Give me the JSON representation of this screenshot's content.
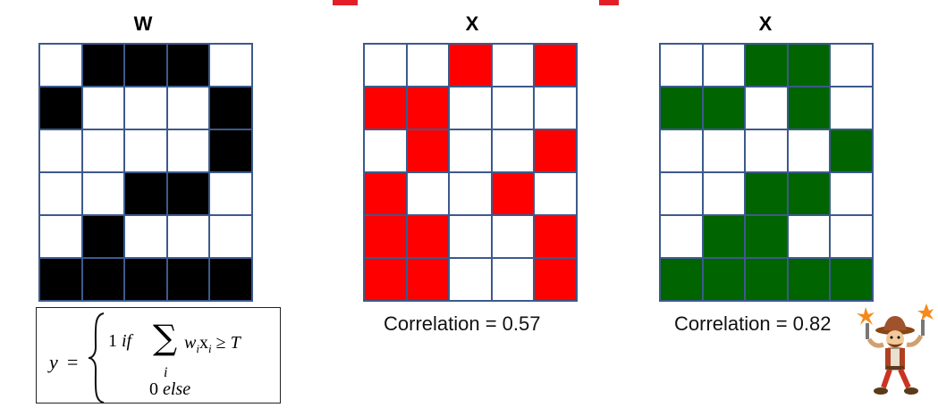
{
  "labels": {
    "w": "W",
    "x1": "X",
    "x2": "X"
  },
  "grids": {
    "w": {
      "color": "#000000",
      "cells": [
        [
          0,
          1,
          1,
          1,
          0
        ],
        [
          1,
          0,
          0,
          0,
          1
        ],
        [
          0,
          0,
          0,
          0,
          1
        ],
        [
          0,
          0,
          1,
          1,
          0
        ],
        [
          0,
          1,
          0,
          0,
          0
        ],
        [
          1,
          1,
          1,
          1,
          1
        ]
      ]
    },
    "x1": {
      "color": "#ff0000",
      "cells": [
        [
          0,
          0,
          1,
          0,
          1
        ],
        [
          1,
          1,
          0,
          0,
          0
        ],
        [
          0,
          1,
          0,
          0,
          1
        ],
        [
          1,
          0,
          0,
          1,
          0
        ],
        [
          1,
          1,
          0,
          0,
          1
        ],
        [
          1,
          1,
          0,
          0,
          1
        ]
      ]
    },
    "x2": {
      "color": "#006400",
      "cells": [
        [
          0,
          0,
          1,
          1,
          0
        ],
        [
          1,
          1,
          0,
          1,
          0
        ],
        [
          0,
          0,
          0,
          0,
          1
        ],
        [
          0,
          0,
          1,
          1,
          0
        ],
        [
          0,
          1,
          1,
          0,
          0
        ],
        [
          1,
          1,
          1,
          1,
          1
        ]
      ]
    }
  },
  "correlations": {
    "x1": "Correlation = 0.57",
    "x2": "Correlation = 0.82"
  },
  "formula": {
    "y": "y",
    "eq": "=",
    "one": "1",
    "if": "if",
    "sigma": "∑",
    "sub_i": "i",
    "w": "w",
    "w_sub": "i",
    "x": "x",
    "x_sub": "i",
    "geq": "≥",
    "T": "T",
    "zero": "0",
    "else": "else"
  },
  "colors": {
    "grid_border": "#3c5a8c",
    "title_accent": "#e41e26"
  },
  "icons": {
    "cowboy": "cowboy-gunslinger-icon"
  }
}
